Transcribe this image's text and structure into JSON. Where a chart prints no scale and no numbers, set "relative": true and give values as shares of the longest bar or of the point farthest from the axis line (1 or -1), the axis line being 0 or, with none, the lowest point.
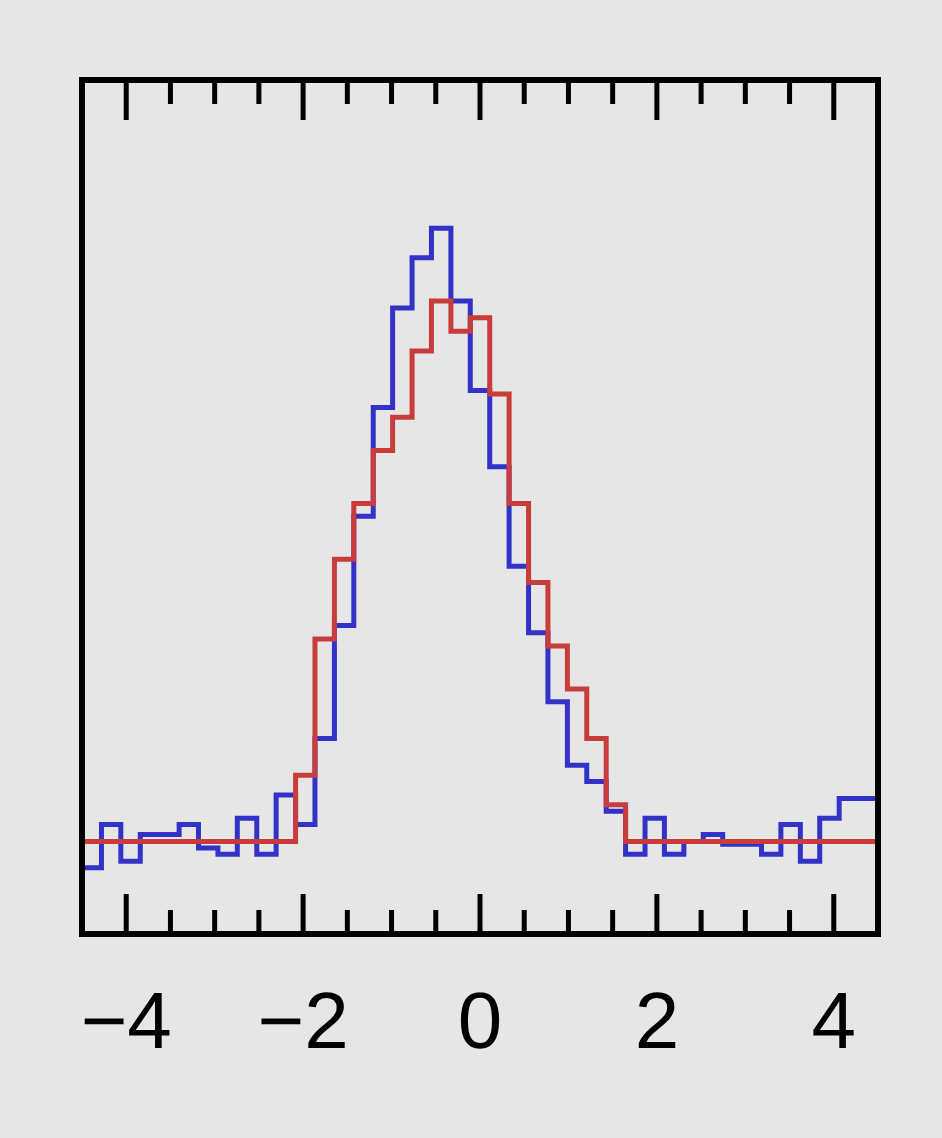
{
  "chart_data": {
    "type": "step",
    "relative": true,
    "x": [
      -4.5,
      -4.28,
      -4.061,
      -3.841,
      -3.622,
      -3.402,
      -3.183,
      -2.963,
      -2.744,
      -2.524,
      -2.305,
      -2.085,
      -1.866,
      -1.646,
      -1.427,
      -1.207,
      -0.988,
      -0.768,
      -0.549,
      -0.329,
      -0.11,
      0.11,
      0.329,
      0.549,
      0.768,
      0.988,
      1.207,
      1.427,
      1.646,
      1.866,
      2.085,
      2.305,
      2.524,
      2.744,
      2.963,
      3.183,
      3.402,
      3.622,
      3.841,
      4.061,
      4.28,
      4.5
    ],
    "series": [
      {
        "color": "#c83c3c",
        "values": [
          0.131,
          0.131,
          0.131,
          0.131,
          0.131,
          0.131,
          0.131,
          0.131,
          0.131,
          0.131,
          0.131,
          0.131,
          0.225,
          0.418,
          0.531,
          0.61,
          0.685,
          0.732,
          0.826,
          0.897,
          0.854,
          0.873,
          0.765,
          0.61,
          0.498,
          0.408,
          0.347,
          0.277,
          0.183,
          0.131,
          0.131,
          0.131,
          0.131,
          0.131,
          0.131,
          0.131,
          0.131,
          0.131,
          0.131,
          0.131,
          0.131,
          0.131
        ]
      },
      {
        "color": "#3232c8",
        "values": [
          0.094,
          0.094,
          0.155,
          0.103,
          0.141,
          0.141,
          0.155,
          0.122,
          0.113,
          0.164,
          0.113,
          0.197,
          0.155,
          0.277,
          0.437,
          0.592,
          0.746,
          0.887,
          0.958,
          1.0,
          0.897,
          0.77,
          0.662,
          0.521,
          0.427,
          0.329,
          0.239,
          0.216,
          0.174,
          0.113,
          0.164,
          0.113,
          0.131,
          0.141,
          0.127,
          0.127,
          0.113,
          0.155,
          0.103,
          0.164,
          0.192,
          0.192
        ]
      }
    ],
    "xlim": [
      -4.5,
      4.5
    ],
    "xticks": [
      {
        "value": -4,
        "label": "−4"
      },
      {
        "value": -3.5,
        "label": null
      },
      {
        "value": -3,
        "label": null
      },
      {
        "value": -2.5,
        "label": null
      },
      {
        "value": -2,
        "label": "−2"
      },
      {
        "value": -1.5,
        "label": null
      },
      {
        "value": -1,
        "label": null
      },
      {
        "value": -0.5,
        "label": null
      },
      {
        "value": 0,
        "label": "0"
      },
      {
        "value": 0.5,
        "label": null
      },
      {
        "value": 1,
        "label": null
      },
      {
        "value": 1.5,
        "label": null
      },
      {
        "value": 2,
        "label": "2"
      },
      {
        "value": 2.5,
        "label": null
      },
      {
        "value": 3,
        "label": null
      },
      {
        "value": 3.5,
        "label": null
      },
      {
        "value": 4,
        "label": "4"
      }
    ],
    "grid": false,
    "legend": false
  }
}
